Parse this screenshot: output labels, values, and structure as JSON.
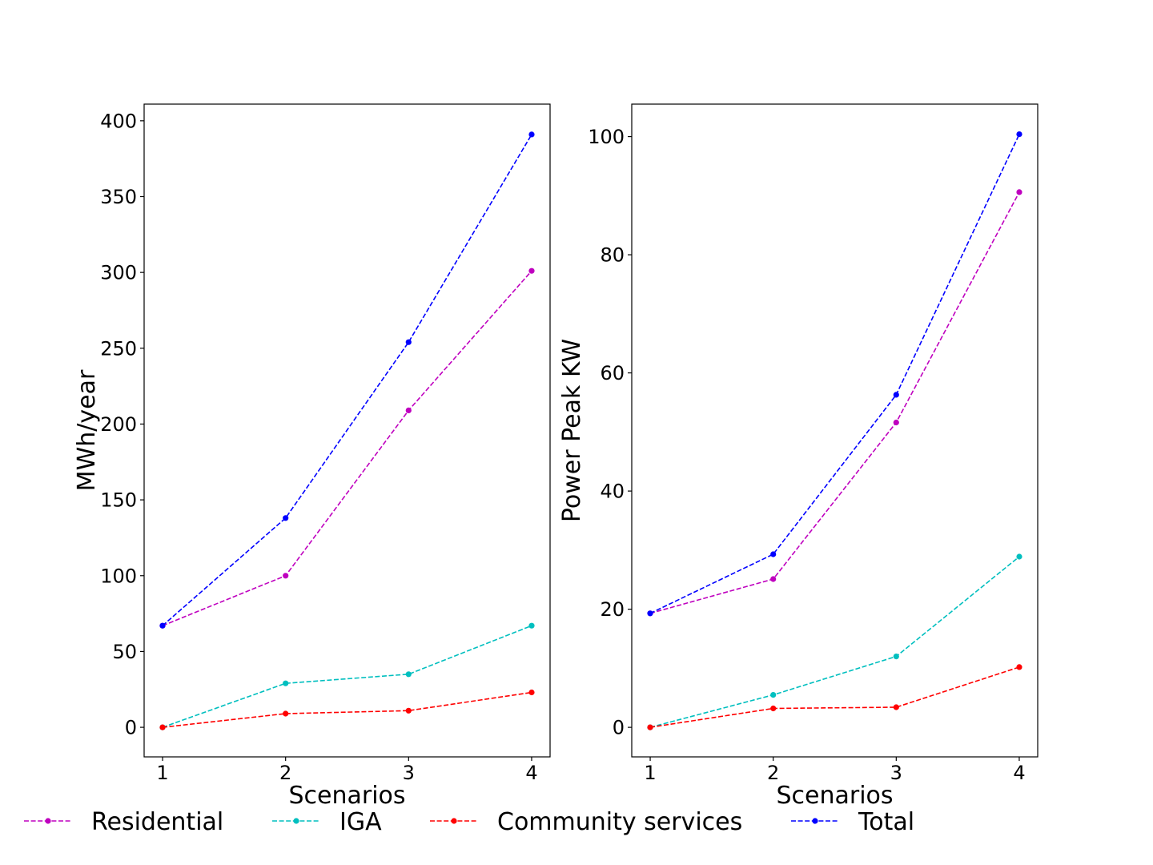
{
  "chart_data": [
    {
      "type": "line",
      "xlabel": "Scenarios",
      "ylabel": "MWh/year",
      "x": [
        1,
        2,
        3,
        4
      ],
      "xticks": [
        "1",
        "2",
        "3",
        "4"
      ],
      "xlim": [
        0.85,
        4.15
      ],
      "ylim": [
        -19.5,
        411
      ],
      "yticks": [
        "0",
        "50",
        "100",
        "150",
        "200",
        "250",
        "300",
        "350",
        "400"
      ],
      "ytick_values": [
        0,
        50,
        100,
        150,
        200,
        250,
        300,
        350,
        400
      ],
      "grid": false,
      "series": [
        {
          "name": "Residential",
          "color": "#bf00bf",
          "values": [
            67,
            100,
            209,
            301
          ]
        },
        {
          "name": "IGA",
          "color": "#00bfbf",
          "values": [
            0,
            29,
            35,
            67
          ]
        },
        {
          "name": "Community services",
          "color": "#ff0000",
          "values": [
            0,
            9,
            11,
            23
          ]
        },
        {
          "name": "Total",
          "color": "#0000ff",
          "values": [
            67,
            138,
            254,
            391
          ]
        }
      ]
    },
    {
      "type": "line",
      "xlabel": "Scenarios",
      "ylabel": "Power Peak KW",
      "x": [
        1,
        2,
        3,
        4
      ],
      "xticks": [
        "1",
        "2",
        "3",
        "4"
      ],
      "xlim": [
        0.85,
        4.15
      ],
      "ylim": [
        -5,
        105.5
      ],
      "yticks": [
        "0",
        "20",
        "40",
        "60",
        "80",
        "100"
      ],
      "ytick_values": [
        0,
        20,
        40,
        60,
        80,
        100
      ],
      "grid": false,
      "series": [
        {
          "name": "Residential",
          "color": "#bf00bf",
          "values": [
            19.3,
            25.1,
            51.6,
            90.6
          ]
        },
        {
          "name": "IGA",
          "color": "#00bfbf",
          "values": [
            0,
            5.5,
            12.0,
            28.9
          ]
        },
        {
          "name": "Community services",
          "color": "#ff0000",
          "values": [
            0,
            3.2,
            3.4,
            10.2
          ]
        },
        {
          "name": "Total",
          "color": "#0000ff",
          "values": [
            19.3,
            29.3,
            56.3,
            100.4
          ]
        }
      ]
    }
  ],
  "legend": {
    "placement": "bottom",
    "items": [
      {
        "label": "Residential",
        "color": "#bf00bf"
      },
      {
        "label": "IGA",
        "color": "#00bfbf"
      },
      {
        "label": "Community services",
        "color": "#ff0000"
      },
      {
        "label": "Total",
        "color": "#0000ff"
      }
    ]
  }
}
